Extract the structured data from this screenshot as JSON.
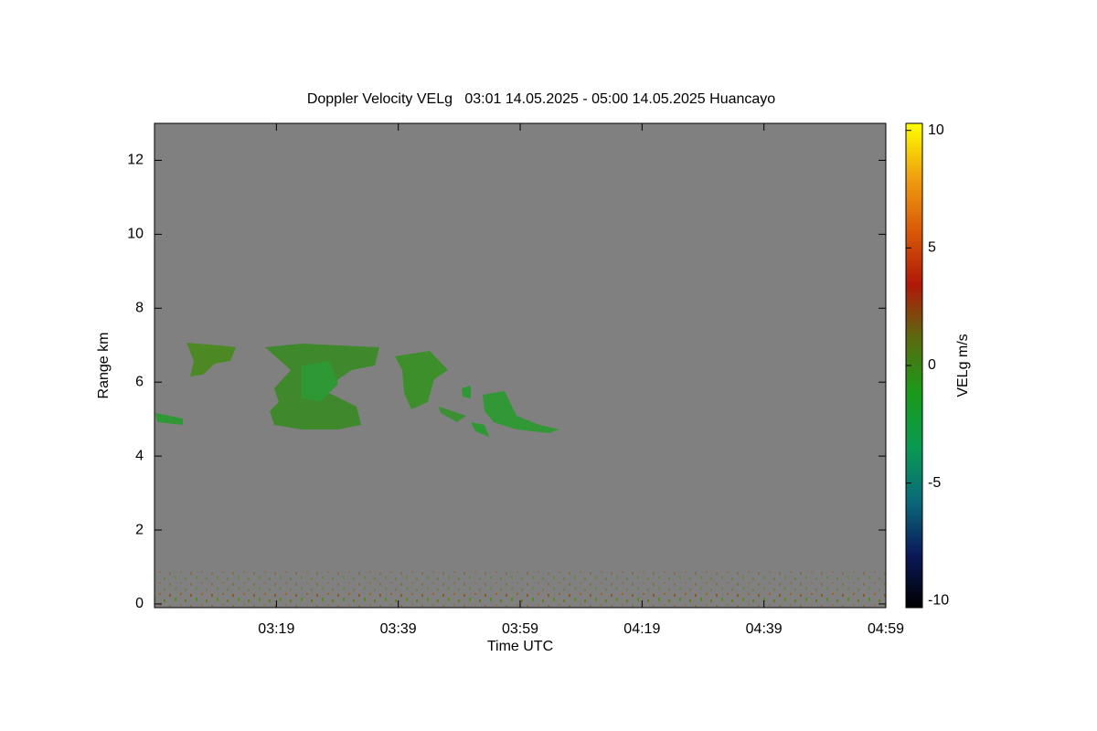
{
  "chart_data": {
    "type": "heatmap",
    "title": "Doppler Velocity VELg   03:01 14.05.2025 - 05:00 14.05.2025 Huancayo",
    "x_label": "Time UTC",
    "y_label": "Range km",
    "colorbar_label": "VELg m/s",
    "background": "#808080",
    "xlim": [
      179,
      299
    ],
    "xticks": [
      {
        "value": 199,
        "label": "03:19"
      },
      {
        "value": 219,
        "label": "03:39"
      },
      {
        "value": 239,
        "label": "03:59"
      },
      {
        "value": 259,
        "label": "04:19"
      },
      {
        "value": 279,
        "label": "04:39"
      },
      {
        "value": 299,
        "label": "04:59"
      }
    ],
    "ylim": [
      -0.1,
      13
    ],
    "yticks": [
      0,
      2,
      4,
      6,
      8,
      10,
      12
    ],
    "zlim": [
      -10.3,
      10.3
    ],
    "zticks": [
      -10,
      -5,
      0,
      5,
      10
    ],
    "colorscale": [
      "#000000",
      "#0a1a5a",
      "#0a6a7a",
      "#0a9a50",
      "#1a9a1a",
      "#5a6a10",
      "#b01808",
      "#d85a08",
      "#f0a010",
      "#ffff00"
    ]
  }
}
